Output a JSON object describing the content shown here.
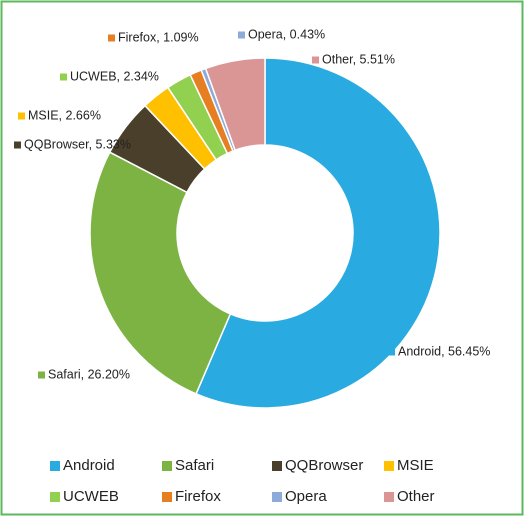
{
  "chart_data": {
    "type": "donut",
    "categories": [
      "Android",
      "Safari",
      "QQBrowser",
      "MSIE",
      "UCWEB",
      "Firefox",
      "Opera",
      "Other"
    ],
    "values": [
      56.45,
      26.2,
      5.33,
      2.66,
      2.34,
      1.09,
      0.43,
      5.51
    ],
    "value_labels": [
      "Android, 56.45%",
      "Safari, 26.20%",
      "QQBrowser, 5.33%",
      "MSIE, 2.66%",
      "UCWEB, 2.34%",
      "Firefox, 1.09%",
      "Opera, 0.43%",
      "Other, 5.51%"
    ],
    "colors": [
      "#29abe2",
      "#7cb342",
      "#4a3f2a",
      "#ffc000",
      "#92d050",
      "#e67e22",
      "#8eaadb",
      "#d99694"
    ],
    "legend": "bottom"
  }
}
